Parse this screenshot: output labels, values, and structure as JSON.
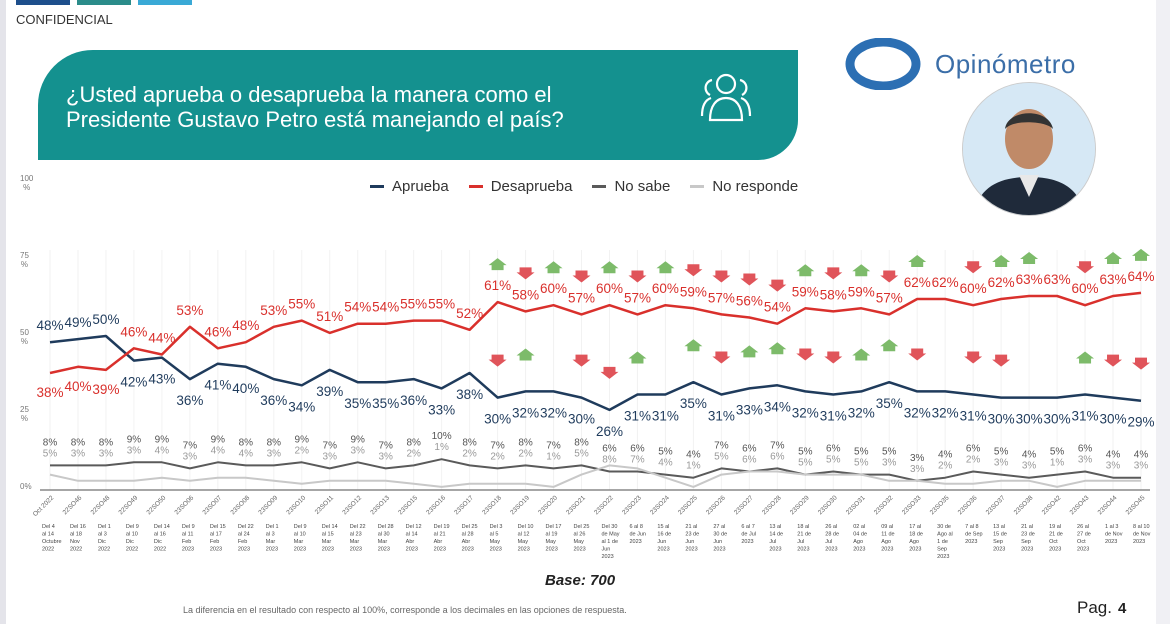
{
  "header": {
    "confidential": "CONFIDENCIAL",
    "question": "¿Usted aprueba o desaprueba la manera como el Presidente Gustavo Petro está manejando el país?",
    "question_line1": "¿Usted aprueba o desaprueba la manera como el",
    "question_line2": "Presidente Gustavo Petro está manejando el país?",
    "brand": "Opinómetro",
    "colors": {
      "teal": "#14918f",
      "tab1": "#1e4f8c",
      "tab2": "#2b8c8a",
      "tab3": "#3aa9d6",
      "brand": "#3b6ea8"
    }
  },
  "footer": {
    "base": "Base: 700",
    "note": "La diferencia en el resultado con respecto al 100%, corresponde a los decimales en las opciones de respuesta.",
    "page_label": "Pag.",
    "page_number": "4"
  },
  "chart_data": {
    "type": "line",
    "ylim": [
      0,
      100
    ],
    "yticks": [
      "100\n%",
      "75\n%",
      "50\n%",
      "25\n%",
      "0%"
    ],
    "ytick_values": [
      100,
      75,
      50,
      25,
      0
    ],
    "legend_position": "top-center",
    "codes": [
      "Oct 2022",
      "22SO46",
      "22SO48",
      "22SO49",
      "22SO50",
      "23SO06",
      "23SO07",
      "23SO08",
      "23SO09",
      "23SO10",
      "23SO11",
      "23SO12",
      "23SO13",
      "23SO15",
      "23SO16",
      "23SO17",
      "23SO18",
      "23SO19",
      "23SO20",
      "23SO21",
      "23SO22",
      "23SO23",
      "23SO24",
      "23SO25",
      "23SO26",
      "23SO27",
      "23SO28",
      "23SO29",
      "23SO30",
      "23SO31",
      "23SO32",
      "23SO33",
      "23SO35",
      "23SO36",
      "23SO37",
      "23SO38",
      "23SO42",
      "23SO43",
      "23SO44",
      "23SO45"
    ],
    "dates": [
      "Del 4 al 14 Octubre 2022",
      "Del 16 al 18 Nov 2022",
      "Del 1 al 3 Dic 2022",
      "Del 9 al 10 Dic 2022",
      "Del 14 al 16 Dic 2022",
      "Del 9 al 11 Feb 2023",
      "Del 15 al 17 Feb 2023",
      "Del 22 al 24 Feb 2023",
      "Del 1 al 3 Mar 2023",
      "Del 9 al 10 Mar 2023",
      "Del 14 al 15 Mar 2023",
      "Del 22 al 23 Mar 2023",
      "Del 28 al 30 Mar 2023",
      "Del 12 al 14 Abr 2023",
      "Del 19 al 21 Abr 2023",
      "Del 25 al 28 Abr 2023",
      "Del 3 al 5 May 2023",
      "Del 10 al 12 May 2023",
      "Del 17 al 19 May 2023",
      "Del 25 al 26 May 2023",
      "Del 30 de May al 1 de Jun 2023",
      "6 al 8 de Jun 2023",
      "15 al 16 de Jun 2023",
      "21 al 23 de Jun 2023",
      "27 al 30 de Jun 2023",
      "6 al 7 de Jul 2023",
      "13 al 14 de Jul 2023",
      "18 al 21 de Jul 2023",
      "26 al 28 de Jul 2023",
      "02 al 04 de Ago 2023",
      "09 al 11 de Ago 2023",
      "17 al 18 de Ago 2023",
      "30 de Ago al 1 de Sep 2023",
      "7 al 8 de Sep 2023",
      "13 al 15 de Sep 2023",
      "21 al 23 de Sep 2023",
      "19 al 21 de Oct 2023",
      "26 al 27 de Oct 2023",
      "1 al 3 de Nov 2023",
      "8 al 10 de Nov 2023"
    ],
    "series": [
      {
        "name": "Aprueba",
        "color": "#1f3b5c",
        "values": [
          48,
          49,
          50,
          42,
          43,
          36,
          41,
          40,
          36,
          34,
          39,
          35,
          35,
          36,
          33,
          38,
          30,
          32,
          32,
          30,
          26,
          31,
          31,
          35,
          31,
          33,
          34,
          32,
          31,
          32,
          35,
          32,
          32,
          31,
          30,
          30,
          30,
          31,
          30,
          29
        ],
        "arrows": [
          null,
          null,
          null,
          null,
          null,
          null,
          null,
          null,
          null,
          null,
          null,
          null,
          null,
          null,
          null,
          null,
          "down",
          "up",
          null,
          "down",
          "down",
          "up",
          null,
          "up",
          "down",
          "up",
          "up",
          "down",
          "down",
          "up",
          "up",
          "down",
          null,
          "down",
          "down",
          null,
          null,
          "up",
          "down",
          "down"
        ]
      },
      {
        "name": "Desaprueba",
        "color": "#d9302c",
        "values": [
          38,
          40,
          39,
          46,
          44,
          53,
          46,
          48,
          53,
          55,
          51,
          54,
          54,
          55,
          55,
          52,
          61,
          58,
          60,
          57,
          60,
          57,
          60,
          59,
          57,
          56,
          54,
          59,
          58,
          59,
          57,
          62,
          62,
          60,
          62,
          63,
          63,
          60,
          63,
          64
        ],
        "arrows": [
          null,
          null,
          null,
          null,
          null,
          null,
          null,
          null,
          null,
          null,
          null,
          null,
          null,
          null,
          null,
          null,
          "up",
          "down",
          "up",
          "down",
          "up",
          "down",
          "up",
          "down",
          "down",
          "down",
          "down",
          "up",
          "down",
          "up",
          "down",
          "up",
          null,
          "down",
          "up",
          "up",
          null,
          "down",
          "up",
          "up"
        ]
      },
      {
        "name": "No sabe",
        "color": "#5a5a5a",
        "values": [
          8,
          8,
          8,
          9,
          9,
          7,
          9,
          8,
          8,
          9,
          7,
          9,
          7,
          8,
          10,
          8,
          7,
          8,
          7,
          8,
          6,
          6,
          5,
          4,
          7,
          6,
          7,
          5,
          6,
          5,
          5,
          3,
          4,
          6,
          5,
          4,
          5,
          6,
          4,
          4
        ]
      },
      {
        "name": "No responde",
        "color": "#c8c8c8",
        "values": [
          5,
          3,
          3,
          3,
          4,
          3,
          4,
          4,
          3,
          2,
          3,
          3,
          3,
          2,
          1,
          2,
          2,
          2,
          1,
          5,
          8,
          7,
          4,
          1,
          5,
          6,
          6,
          5,
          5,
          5,
          3,
          3,
          2,
          2,
          3,
          3,
          1,
          3,
          3,
          3
        ]
      }
    ],
    "arrow_colors": {
      "up": "#7dbb6a",
      "down": "#e0545a"
    }
  }
}
